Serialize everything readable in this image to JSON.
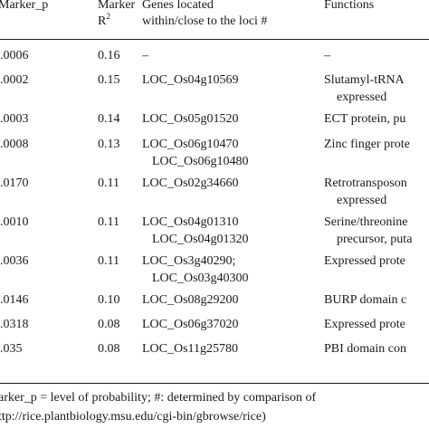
{
  "header": {
    "col1": "Marker_p",
    "col2_line1": "Marker",
    "col2_line2": "R",
    "col2_sup": "2",
    "col3_line1": "Genes located",
    "col3_line2": "within/close to the loci #",
    "col4": "Functions"
  },
  "rows": [
    {
      "p": ".0006",
      "r2": "0.16",
      "genes": [
        "–"
      ],
      "functions": [
        "–"
      ]
    },
    {
      "p": ".0002",
      "r2": "0.15",
      "genes": [
        "LOC_Os04g10569"
      ],
      "functions": [
        "Slutamyl-tRNA",
        "expressed"
      ]
    },
    {
      "p": ".0003",
      "r2": "0.14",
      "genes": [
        "LOC_Os05g01520"
      ],
      "functions": [
        "ECT protein, pu"
      ]
    },
    {
      "p": ".0008",
      "r2": "0.13",
      "genes": [
        "LOC_Os06g10470",
        "LOC_Os06g10480"
      ],
      "functions": [
        "Zinc finger prote"
      ]
    },
    {
      "p": ".0170",
      "r2": "0.11",
      "genes": [
        "LOC_Os02g34660"
      ],
      "functions": [
        "Retrotransposon",
        "expressed"
      ]
    },
    {
      "p": ".0010",
      "r2": "0.11",
      "genes": [
        "LOC_Os04g01310",
        "LOC_Os04g01320"
      ],
      "functions": [
        "Serine/threonine",
        "precursor, puta"
      ]
    },
    {
      "p": ".0036",
      "r2": "0.11",
      "genes": [
        "LOC_Os3g40290;",
        "LOC_Os03g40300"
      ],
      "functions": [
        "Expressed prote"
      ]
    },
    {
      "p": ".0146",
      "r2": "0.10",
      "genes": [
        "LOC_Os08g29200"
      ],
      "functions": [
        "BURP domain c"
      ]
    },
    {
      "p": ".0318",
      "r2": "0.08",
      "genes": [
        "LOC_Os06g37020"
      ],
      "functions": [
        "Expressed prote"
      ]
    },
    {
      "p": ".035",
      "r2": "0.08",
      "genes": [
        "LOC_Os11g25780"
      ],
      "functions": [
        "PBI domain con"
      ]
    }
  ],
  "footnote": {
    "line1": "arker_p = level of probability; #: determined by comparison of",
    "line2": "ttp://rice.plantbiology.msu.edu/cgi-bin/gbrowse/rice)"
  }
}
